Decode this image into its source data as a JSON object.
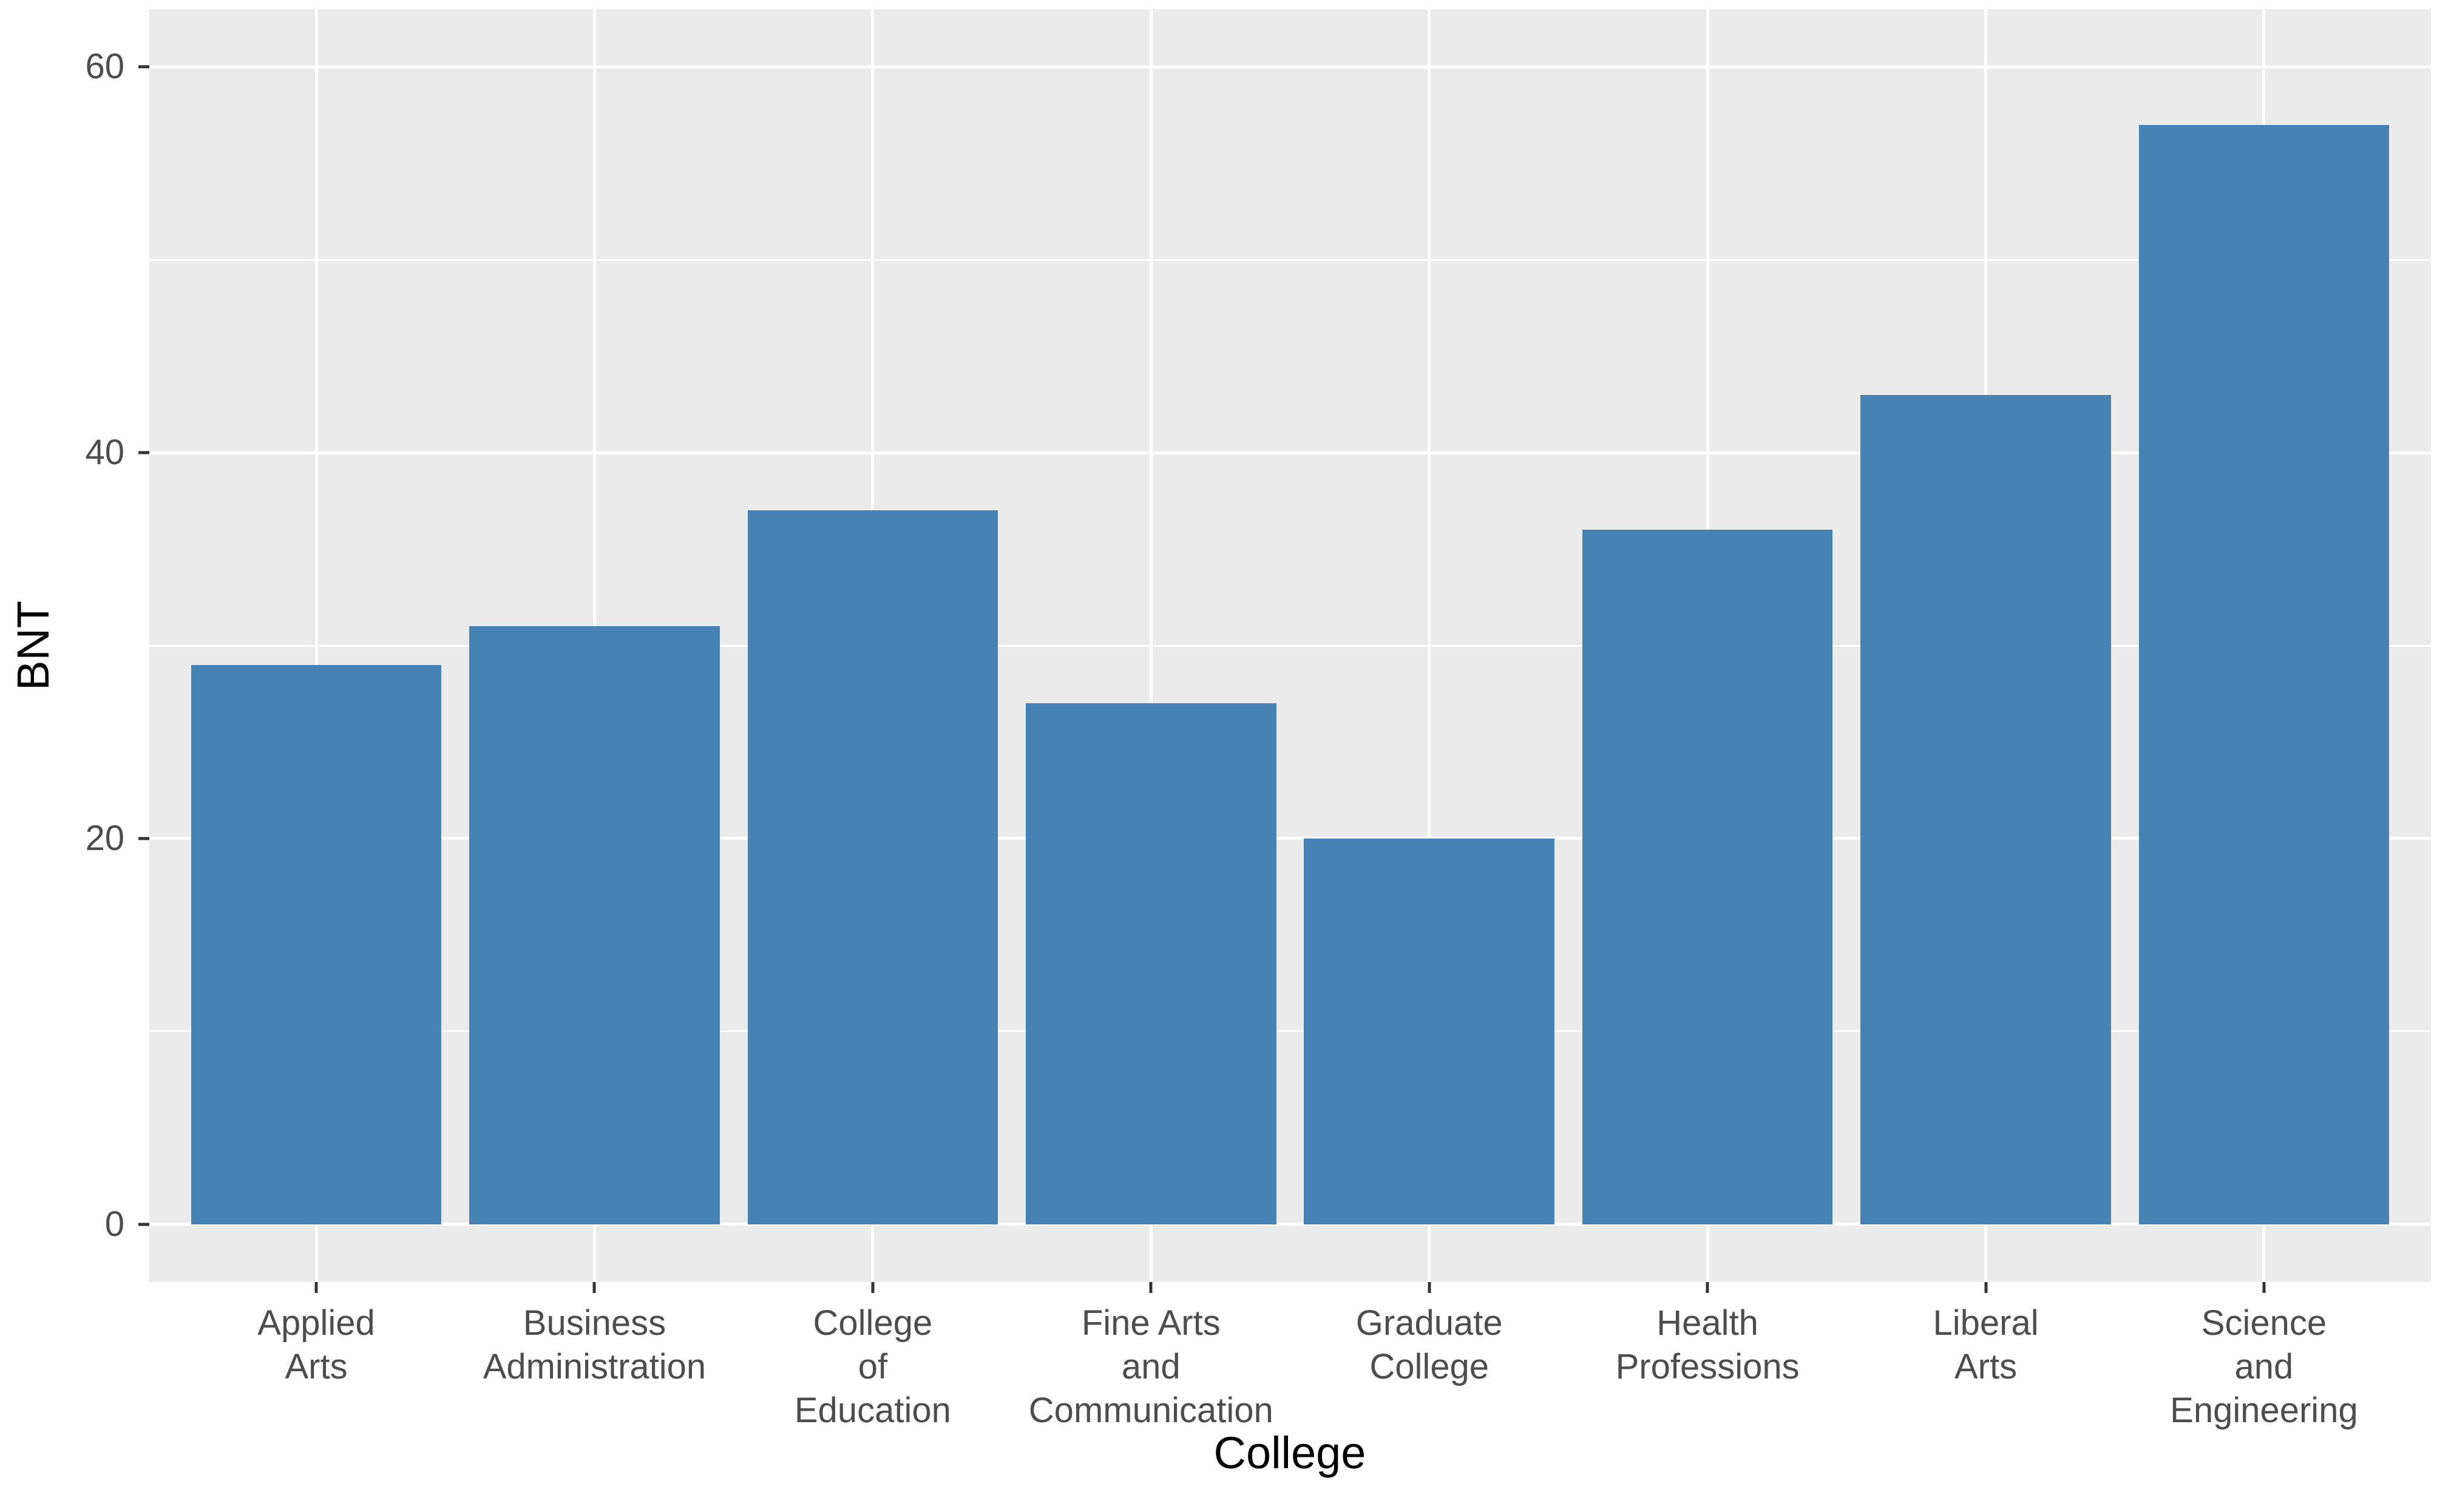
{
  "figure": {
    "background": "#FFFFFF"
  },
  "chart_data": {
    "type": "bar",
    "title": "",
    "xlabel": "College",
    "ylabel": "BNT",
    "categories": [
      "Applied Arts",
      "Business Administration",
      "College of Education",
      "Fine Arts and Communication",
      "Graduate College",
      "Health Professions",
      "Liberal Arts",
      "Science and Engineering"
    ],
    "category_label_lines": [
      [
        "Applied",
        "Arts"
      ],
      [
        "Business",
        "Administration"
      ],
      [
        "College",
        "of",
        "Education"
      ],
      [
        "Fine Arts",
        "and",
        "Communication"
      ],
      [
        "Graduate",
        "College"
      ],
      [
        "Health",
        "Professions"
      ],
      [
        "Liberal",
        "Arts"
      ],
      [
        "Science",
        "and",
        "Engineering"
      ]
    ],
    "values": [
      29,
      31,
      37,
      27,
      20,
      36,
      43,
      57
    ],
    "y_axis": {
      "tick_labels": [
        "0",
        "20",
        "40",
        "60"
      ],
      "major_breaks": [
        0,
        20,
        40,
        60
      ],
      "minor_breaks": [
        10,
        30,
        50
      ],
      "range_shown": [
        -3,
        63
      ]
    },
    "x_axis": {
      "gridline_at_each_category": true,
      "minor_breaks": []
    },
    "legend_position": "none",
    "grid": "on",
    "style": {
      "bar_fill": "#4682B4",
      "panel_background": "#EBEBEB",
      "gridline_color": "#FFFFFF",
      "axis_text_color": "#4D4D4D",
      "axis_title_color": "#000000",
      "tick_mark_color": "#333333"
    }
  }
}
